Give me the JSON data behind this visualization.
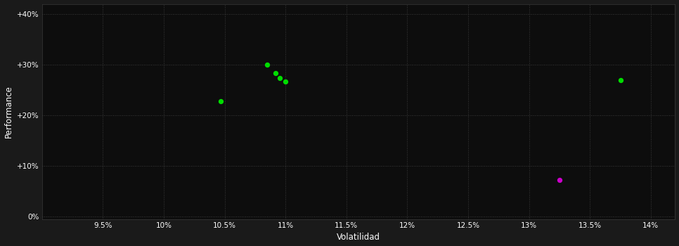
{
  "background_color": "#1a1a1a",
  "plot_bg_color": "#0d0d0d",
  "grid_color": "#3a3a3a",
  "xlabel": "Volatilidad",
  "ylabel": "Performance",
  "xlim": [
    0.09,
    0.142
  ],
  "ylim": [
    -0.005,
    0.42
  ],
  "xticks": [
    0.095,
    0.1,
    0.105,
    0.11,
    0.115,
    0.12,
    0.125,
    0.13,
    0.135,
    0.14
  ],
  "xtick_labels": [
    "9.5%",
    "10%",
    "10.5%",
    "11%",
    "11.5%",
    "12%",
    "12.5%",
    "13%",
    "13.5%",
    "14%"
  ],
  "yticks": [
    0.0,
    0.1,
    0.2,
    0.3,
    0.4
  ],
  "ytick_labels": [
    "0%",
    "+10%",
    "+20%",
    "+30%",
    "+40%"
  ],
  "green_points": [
    [
      0.1047,
      0.228
    ],
    [
      0.1085,
      0.3
    ],
    [
      0.1092,
      0.283
    ],
    [
      0.1095,
      0.274
    ],
    [
      0.11,
      0.267
    ],
    [
      0.1375,
      0.269
    ]
  ],
  "magenta_points": [
    [
      0.1325,
      0.072
    ]
  ],
  "point_color_green": "#00dd00",
  "point_color_magenta": "#cc00cc",
  "point_size": 28,
  "figsize": [
    9.66,
    3.5
  ],
  "dpi": 100
}
